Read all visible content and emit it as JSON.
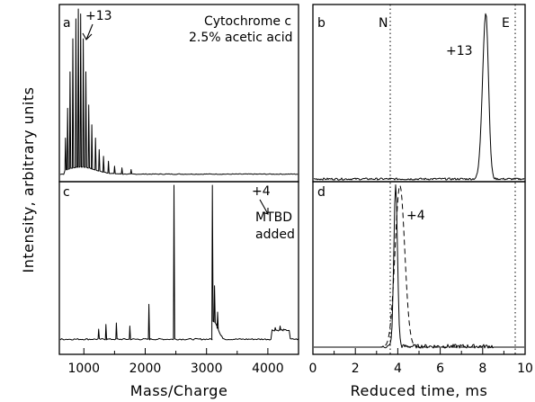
{
  "figure": {
    "ylabel": "Intensity, arbitrary units",
    "left_xlabel": "Mass/Charge",
    "right_xlabel": "Reduced time, ms"
  },
  "panels": {
    "a": {
      "letter": "a",
      "peak_label": "+13",
      "title_line1": "Cytochrome c",
      "title_line2": "2.5% acetic acid"
    },
    "b": {
      "letter": "b",
      "peak_label": "+13",
      "marker_n": "N",
      "marker_e": "E"
    },
    "c": {
      "letter": "c",
      "peak_label": "+4",
      "note_line1": "MTBD",
      "note_line2": "added"
    },
    "d": {
      "letter": "d",
      "peak_label": "+4"
    }
  },
  "chart_data": [
    {
      "type": "line",
      "panel": "a",
      "title": "Cytochrome c 2.5% acetic acid",
      "xlabel": "Mass/Charge",
      "ylabel": "Intensity, arbitrary units",
      "xlim": [
        600,
        4500
      ],
      "ylim": [
        0,
        1
      ],
      "xticks": [
        1000,
        2000,
        3000,
        4000
      ],
      "annotations": [
        {
          "text": "+13",
          "x": 948
        }
      ],
      "peaks": [
        {
          "x": 700,
          "y": 0.22
        },
        {
          "x": 735,
          "y": 0.4
        },
        {
          "x": 775,
          "y": 0.62
        },
        {
          "x": 820,
          "y": 0.82
        },
        {
          "x": 870,
          "y": 0.94
        },
        {
          "x": 910,
          "y": 1.0
        },
        {
          "x": 948,
          "y": 0.97
        },
        {
          "x": 990,
          "y": 0.82
        },
        {
          "x": 1032,
          "y": 0.62
        },
        {
          "x": 1080,
          "y": 0.42
        },
        {
          "x": 1130,
          "y": 0.3
        },
        {
          "x": 1190,
          "y": 0.22
        },
        {
          "x": 1250,
          "y": 0.15
        },
        {
          "x": 1320,
          "y": 0.11
        },
        {
          "x": 1400,
          "y": 0.08
        },
        {
          "x": 1500,
          "y": 0.05
        },
        {
          "x": 1620,
          "y": 0.04
        },
        {
          "x": 1770,
          "y": 0.03
        }
      ]
    },
    {
      "type": "line",
      "panel": "b",
      "xlabel": "",
      "xlim": [
        0,
        10
      ],
      "ylim": [
        0,
        1
      ],
      "reference_lines": [
        {
          "label": "N",
          "x": 3.65
        },
        {
          "label": "E",
          "x": 9.55
        }
      ],
      "annotations": [
        {
          "text": "+13",
          "x": 7.1
        }
      ],
      "peaks": [
        {
          "x": 8.15,
          "y": 1.0,
          "width": 0.22
        }
      ]
    },
    {
      "type": "line",
      "panel": "c",
      "xlabel": "Mass/Charge",
      "xlim": [
        600,
        4500
      ],
      "ylim": [
        0,
        1
      ],
      "xticks": [
        1000,
        2000,
        3000,
        4000
      ],
      "annotations": [
        {
          "text": "+4",
          "x": 3080
        },
        {
          "text": "MTBD added",
          "x": 3700
        }
      ],
      "peaks": [
        {
          "x": 1240,
          "y": 0.07
        },
        {
          "x": 1360,
          "y": 0.1
        },
        {
          "x": 1530,
          "y": 0.11
        },
        {
          "x": 1750,
          "y": 0.09
        },
        {
          "x": 2060,
          "y": 0.23
        },
        {
          "x": 2470,
          "y": 1.0
        },
        {
          "x": 3095,
          "y": 1.0
        },
        {
          "x": 3130,
          "y": 0.35
        },
        {
          "x": 3180,
          "y": 0.18
        },
        {
          "x": 4120,
          "y": 0.08
        },
        {
          "x": 4200,
          "y": 0.09
        },
        {
          "x": 4260,
          "y": 0.07
        }
      ]
    },
    {
      "type": "line",
      "panel": "d",
      "xlabel": "Reduced time, ms",
      "xlim": [
        0,
        10
      ],
      "ylim": [
        0,
        1
      ],
      "xticks": [
        0,
        2,
        4,
        6,
        8,
        10
      ],
      "reference_lines": [
        {
          "label": "N",
          "x": 3.65
        },
        {
          "label": "E",
          "x": 9.55
        }
      ],
      "annotations": [
        {
          "text": "+4",
          "x": 4.55
        }
      ],
      "series": [
        {
          "style": "solid",
          "peak_x": 3.9,
          "peak_y": 1.0,
          "width": 0.12
        },
        {
          "style": "dashed",
          "peak_x": 4.1,
          "peak_y": 1.0,
          "width": 0.32
        }
      ]
    }
  ]
}
